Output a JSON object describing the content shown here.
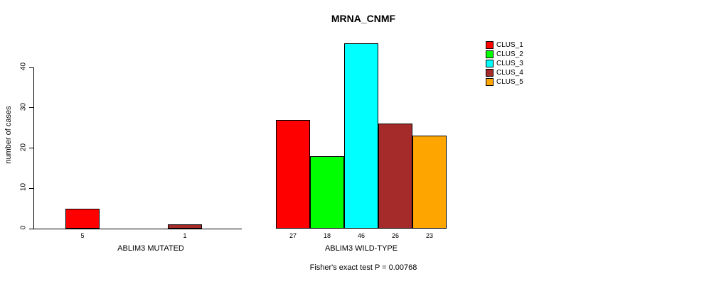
{
  "chart_data": {
    "type": "bar",
    "title": "MRNA_CNMF",
    "ylabel": "number of cases",
    "xlabel": "",
    "subtitle": "Fisher's exact test P = 0.00768",
    "yticks": [
      0,
      10,
      20,
      30,
      40
    ],
    "ylim": [
      0,
      46
    ],
    "grid": false,
    "legend_position": "top-right",
    "categories": [
      "ABLIM3 MUTATED",
      "ABLIM3 WILD-TYPE"
    ],
    "series": [
      {
        "name": "CLUS_1",
        "color": "#ff0000",
        "values": [
          5,
          27
        ]
      },
      {
        "name": "CLUS_2",
        "color": "#00ff00",
        "values": [
          0,
          18
        ]
      },
      {
        "name": "CLUS_3",
        "color": "#00ffff",
        "values": [
          0,
          46
        ]
      },
      {
        "name": "CLUS_4",
        "color": "#a52a2a",
        "values": [
          1,
          26
        ]
      },
      {
        "name": "CLUS_5",
        "color": "#ffa500",
        "values": [
          0,
          23
        ]
      }
    ],
    "bar_value_labels": {
      "ABLIM3 MUTATED": [
        "5",
        "",
        "",
        "1",
        ""
      ],
      "ABLIM3 WILD-TYPE": [
        "27",
        "18",
        "46",
        "26",
        "23"
      ]
    }
  }
}
